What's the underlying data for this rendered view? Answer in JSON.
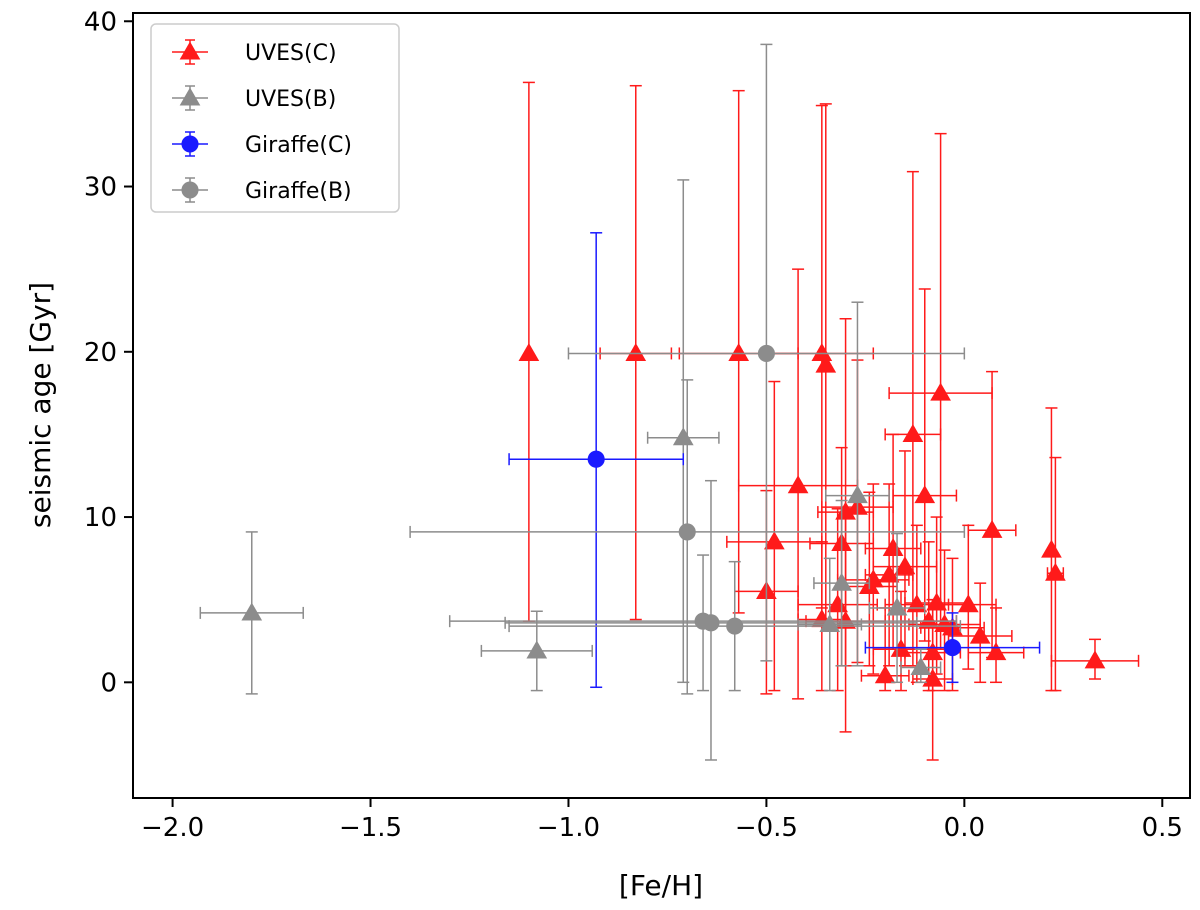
{
  "chart_data": {
    "type": "scatter",
    "title": "",
    "xlabel": "[Fe/H]",
    "ylabel": "seismic age [Gyr]",
    "xlim": [
      -2.1,
      0.57
    ],
    "ylim": [
      -7,
      40.5
    ],
    "xticks": [
      -2.0,
      -1.5,
      -1.0,
      -0.5,
      0.0,
      0.5
    ],
    "xtick_labels": [
      "−2.0",
      "−1.5",
      "−1.0",
      "−0.5",
      "0.0",
      "0.5"
    ],
    "yticks": [
      0,
      10,
      20,
      30,
      40
    ],
    "ytick_labels": [
      "0",
      "10",
      "20",
      "30",
      "40"
    ],
    "grid": false,
    "legend_position": "top-left",
    "colors": {
      "red": "#ff1a1a",
      "gray": "#8c8c8c",
      "blue": "#1a1aff"
    },
    "series": [
      {
        "name": "UVES(C)",
        "marker": "triangle",
        "color": "#ff1a1a",
        "points": [
          {
            "x": -1.1,
            "y": 19.9,
            "xerr": 0.0,
            "ylo": 3.7,
            "yhi": 36.3
          },
          {
            "x": -0.83,
            "y": 19.9,
            "xerr": 0.09,
            "ylo": 3.8,
            "yhi": 36.1
          },
          {
            "x": -0.57,
            "y": 19.9,
            "xerr": 0.15,
            "ylo": 4.2,
            "yhi": 35.8
          },
          {
            "x": -0.36,
            "y": 19.9,
            "xerr": 0.13,
            "ylo": 4.5,
            "yhi": 34.9
          },
          {
            "x": -0.35,
            "y": 19.2,
            "xerr": 0.0,
            "ylo": 3.5,
            "yhi": 35.0
          },
          {
            "x": -0.42,
            "y": 11.9,
            "xerr": 0.15,
            "ylo": -1.0,
            "yhi": 25.0
          },
          {
            "x": -0.48,
            "y": 8.5,
            "xerr": 0.12,
            "ylo": -0.5,
            "yhi": 18.2
          },
          {
            "x": -0.5,
            "y": 5.5,
            "xerr": 0.08,
            "ylo": -0.7,
            "yhi": 11.6
          },
          {
            "x": -0.36,
            "y": 3.8,
            "xerr": 0.06,
            "ylo": -0.5,
            "yhi": 8.5
          },
          {
            "x": -0.31,
            "y": 8.4,
            "xerr": 0.08,
            "ylo": 1.0,
            "yhi": 14.2
          },
          {
            "x": -0.3,
            "y": 10.3,
            "xerr": 0.07,
            "ylo": 1.0,
            "yhi": 22.0
          },
          {
            "x": -0.27,
            "y": 10.6,
            "xerr": 0.09,
            "ylo": 1.2,
            "yhi": 19.5
          },
          {
            "x": -0.32,
            "y": 4.7,
            "xerr": 0.1,
            "ylo": -0.5,
            "yhi": 10.5
          },
          {
            "x": -0.3,
            "y": 3.7,
            "xerr": 0.1,
            "ylo": -3.0,
            "yhi": 10.5
          },
          {
            "x": -0.24,
            "y": 5.8,
            "xerr": 0.07,
            "ylo": 1.0,
            "yhi": 11.5
          },
          {
            "x": -0.23,
            "y": 6.2,
            "xerr": 0.09,
            "ylo": 0.5,
            "yhi": 12.0
          },
          {
            "x": -0.2,
            "y": 0.4,
            "xerr": 0.06,
            "ylo": -0.5,
            "yhi": 4.5
          },
          {
            "x": -0.19,
            "y": 6.5,
            "xerr": 0.06,
            "ylo": 1.0,
            "yhi": 12.0
          },
          {
            "x": -0.18,
            "y": 8.1,
            "xerr": 0.07,
            "ylo": 2.0,
            "yhi": 15.0
          },
          {
            "x": -0.16,
            "y": 2.0,
            "xerr": 0.07,
            "ylo": -0.5,
            "yhi": 5.5
          },
          {
            "x": -0.15,
            "y": 7.0,
            "xerr": 0.08,
            "ylo": 1.0,
            "yhi": 14.0
          },
          {
            "x": -0.13,
            "y": 15.0,
            "xerr": 0.07,
            "ylo": 1.0,
            "yhi": 30.9
          },
          {
            "x": -0.12,
            "y": 4.7,
            "xerr": 0.08,
            "ylo": 0.0,
            "yhi": 9.5
          },
          {
            "x": -0.1,
            "y": 11.3,
            "xerr": 0.08,
            "ylo": 2.5,
            "yhi": 23.8
          },
          {
            "x": -0.09,
            "y": 3.7,
            "xerr": 0.07,
            "ylo": -0.5,
            "yhi": 8.5
          },
          {
            "x": -0.08,
            "y": 1.8,
            "xerr": 0.07,
            "ylo": -0.5,
            "yhi": 5.0
          },
          {
            "x": -0.08,
            "y": 0.2,
            "xerr": 0.05,
            "ylo": -4.7,
            "yhi": 5.0
          },
          {
            "x": -0.07,
            "y": 4.8,
            "xerr": 0.08,
            "ylo": 0.5,
            "yhi": 10.0
          },
          {
            "x": -0.06,
            "y": 17.5,
            "xerr": 0.13,
            "ylo": 2.0,
            "yhi": 33.2
          },
          {
            "x": -0.05,
            "y": 3.5,
            "xerr": 0.09,
            "ylo": -0.5,
            "yhi": 8.0
          },
          {
            "x": -0.03,
            "y": 3.3,
            "xerr": 0.08,
            "ylo": -0.5,
            "yhi": 7.5
          },
          {
            "x": 0.01,
            "y": 4.7,
            "xerr": 0.07,
            "ylo": 0.8,
            "yhi": 9.5
          },
          {
            "x": 0.04,
            "y": 2.8,
            "xerr": 0.08,
            "ylo": 0.0,
            "yhi": 6.0
          },
          {
            "x": 0.07,
            "y": 9.2,
            "xerr": 0.06,
            "ylo": 1.5,
            "yhi": 18.8
          },
          {
            "x": 0.08,
            "y": 1.8,
            "xerr": 0.07,
            "ylo": 0.0,
            "yhi": 4.5
          },
          {
            "x": 0.22,
            "y": 8.0,
            "xerr": 0.0,
            "ylo": -0.5,
            "yhi": 16.6
          },
          {
            "x": 0.23,
            "y": 6.6,
            "xerr": 0.02,
            "ylo": -0.5,
            "yhi": 13.6
          },
          {
            "x": 0.33,
            "y": 1.3,
            "xerr": 0.11,
            "ylo": 0.2,
            "yhi": 2.6
          }
        ]
      },
      {
        "name": "UVES(B)",
        "marker": "triangle",
        "color": "#8c8c8c",
        "points": [
          {
            "x": -1.8,
            "y": 4.2,
            "xerr": 0.13,
            "ylo": -0.7,
            "yhi": 9.1
          },
          {
            "x": -1.08,
            "y": 1.9,
            "xerr": 0.14,
            "ylo": -0.5,
            "yhi": 4.3
          },
          {
            "x": -0.71,
            "y": 14.8,
            "xerr": 0.09,
            "ylo": 0.0,
            "yhi": 30.4
          },
          {
            "x": -0.34,
            "y": 3.5,
            "xerr": 0.08,
            "ylo": -0.5,
            "yhi": 7.5
          },
          {
            "x": -0.31,
            "y": 6.0,
            "xerr": 0.07,
            "ylo": 1.0,
            "yhi": 11.0
          },
          {
            "x": -0.27,
            "y": 11.3,
            "xerr": 0.08,
            "ylo": 1.0,
            "yhi": 23.0
          },
          {
            "x": -0.17,
            "y": 4.5,
            "xerr": 0.07,
            "ylo": 0.0,
            "yhi": 9.0
          },
          {
            "x": -0.11,
            "y": 0.9,
            "xerr": 0.05,
            "ylo": 0.0,
            "yhi": 2.0
          }
        ]
      },
      {
        "name": "Giraffe(C)",
        "marker": "circle",
        "color": "#1a1aff",
        "points": [
          {
            "x": -0.93,
            "y": 13.5,
            "xerr": 0.22,
            "ylo": -0.3,
            "yhi": 27.2
          },
          {
            "x": -0.03,
            "y": 2.1,
            "xerr": 0.22,
            "ylo": 0.0,
            "yhi": 4.2
          }
        ]
      },
      {
        "name": "Giraffe(B)",
        "marker": "circle",
        "color": "#8c8c8c",
        "points": [
          {
            "x": -0.5,
            "y": 19.9,
            "xerr": 0.5,
            "ylo": 1.3,
            "yhi": 38.6
          },
          {
            "x": -0.7,
            "y": 9.1,
            "xerr": 0.7,
            "ylo": -0.7,
            "yhi": 18.3
          },
          {
            "x": -0.66,
            "y": 3.7,
            "xerr": 0.64,
            "ylo": -0.5,
            "yhi": 7.7
          },
          {
            "x": -0.64,
            "y": 3.6,
            "xerr": 0.52,
            "ylo": -4.7,
            "yhi": 12.2
          },
          {
            "x": -0.58,
            "y": 3.4,
            "xerr": 0.57,
            "ylo": -0.5,
            "yhi": 7.3
          }
        ]
      }
    ]
  }
}
